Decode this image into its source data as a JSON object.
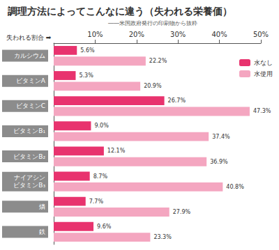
{
  "chart_data": {
    "type": "bar",
    "orientation": "horizontal",
    "title": "調理方法によってこんなに違う（失われる栄養価）",
    "subtitle": "――米国政府発行の印刷物から抜粋",
    "xlabel": "失われる割合 ➡",
    "categories": [
      "カルシウム",
      "ビタミンA",
      "ビタミンC",
      "ビタミンB₁",
      "ビタミンB₂",
      "ナイアシン\nビタミンB₃",
      "燐",
      "鉄"
    ],
    "series": [
      {
        "name": "水なし",
        "color": "#e8336e",
        "values": [
          5.6,
          5.3,
          26.7,
          9.0,
          12.1,
          8.7,
          7.7,
          9.6
        ],
        "value_labels": [
          "5.6%",
          "5.3%",
          "26.7%",
          "9.0%",
          "12.1%",
          "8.7%",
          "7.7%",
          "9.6%"
        ]
      },
      {
        "name": "水使用",
        "color": "#f4a6c0",
        "values": [
          22.2,
          20.9,
          47.3,
          37.4,
          36.9,
          40.8,
          27.9,
          23.3
        ],
        "value_labels": [
          "22.2%",
          "20.9%",
          "47.3%",
          "37.4%",
          "36.9%",
          "40.8%",
          "27.9%",
          "23.3%"
        ]
      }
    ],
    "xlim": [
      0,
      50
    ],
    "xticks": [
      {
        "value": 10,
        "label": "10%"
      },
      {
        "value": 20,
        "label": "20%"
      },
      {
        "value": 30,
        "label": "30%"
      },
      {
        "value": 40,
        "label": "40%"
      },
      {
        "value": 50,
        "label": "50%"
      }
    ],
    "grid": false,
    "legend": "right",
    "data_labels": true
  }
}
